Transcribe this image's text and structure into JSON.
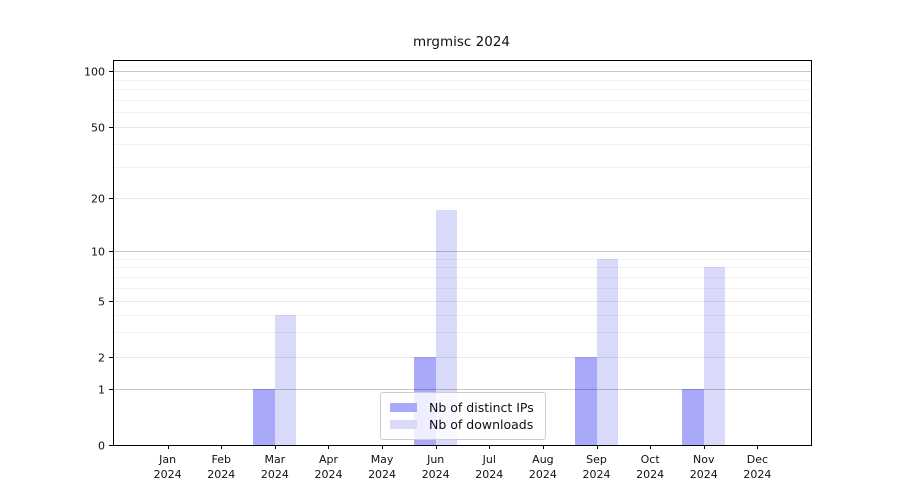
{
  "chart_data": {
    "type": "bar",
    "title": "mrgmisc 2024",
    "categories": [
      "Jan",
      "Feb",
      "Mar",
      "Apr",
      "May",
      "Jun",
      "Jul",
      "Aug",
      "Sep",
      "Oct",
      "Nov",
      "Dec"
    ],
    "year_label": "2024",
    "series": [
      {
        "name": "Nb of distinct IPs",
        "color": "#a8a9f8",
        "values": [
          0,
          0,
          1,
          0,
          0,
          2,
          0,
          0,
          2,
          0,
          1,
          0
        ]
      },
      {
        "name": "Nb of downloads",
        "color": "#d9dafa",
        "values": [
          0,
          0,
          4,
          0,
          0,
          17,
          0,
          0,
          9,
          0,
          8,
          0
        ]
      }
    ],
    "y_ticks": [
      0,
      1,
      2,
      5,
      10,
      20,
      50,
      100
    ],
    "y_scale": "log-like",
    "ylim": [
      0,
      114
    ],
    "xlabel": "",
    "ylabel": "",
    "grid": true,
    "legend_position": "lower center"
  }
}
